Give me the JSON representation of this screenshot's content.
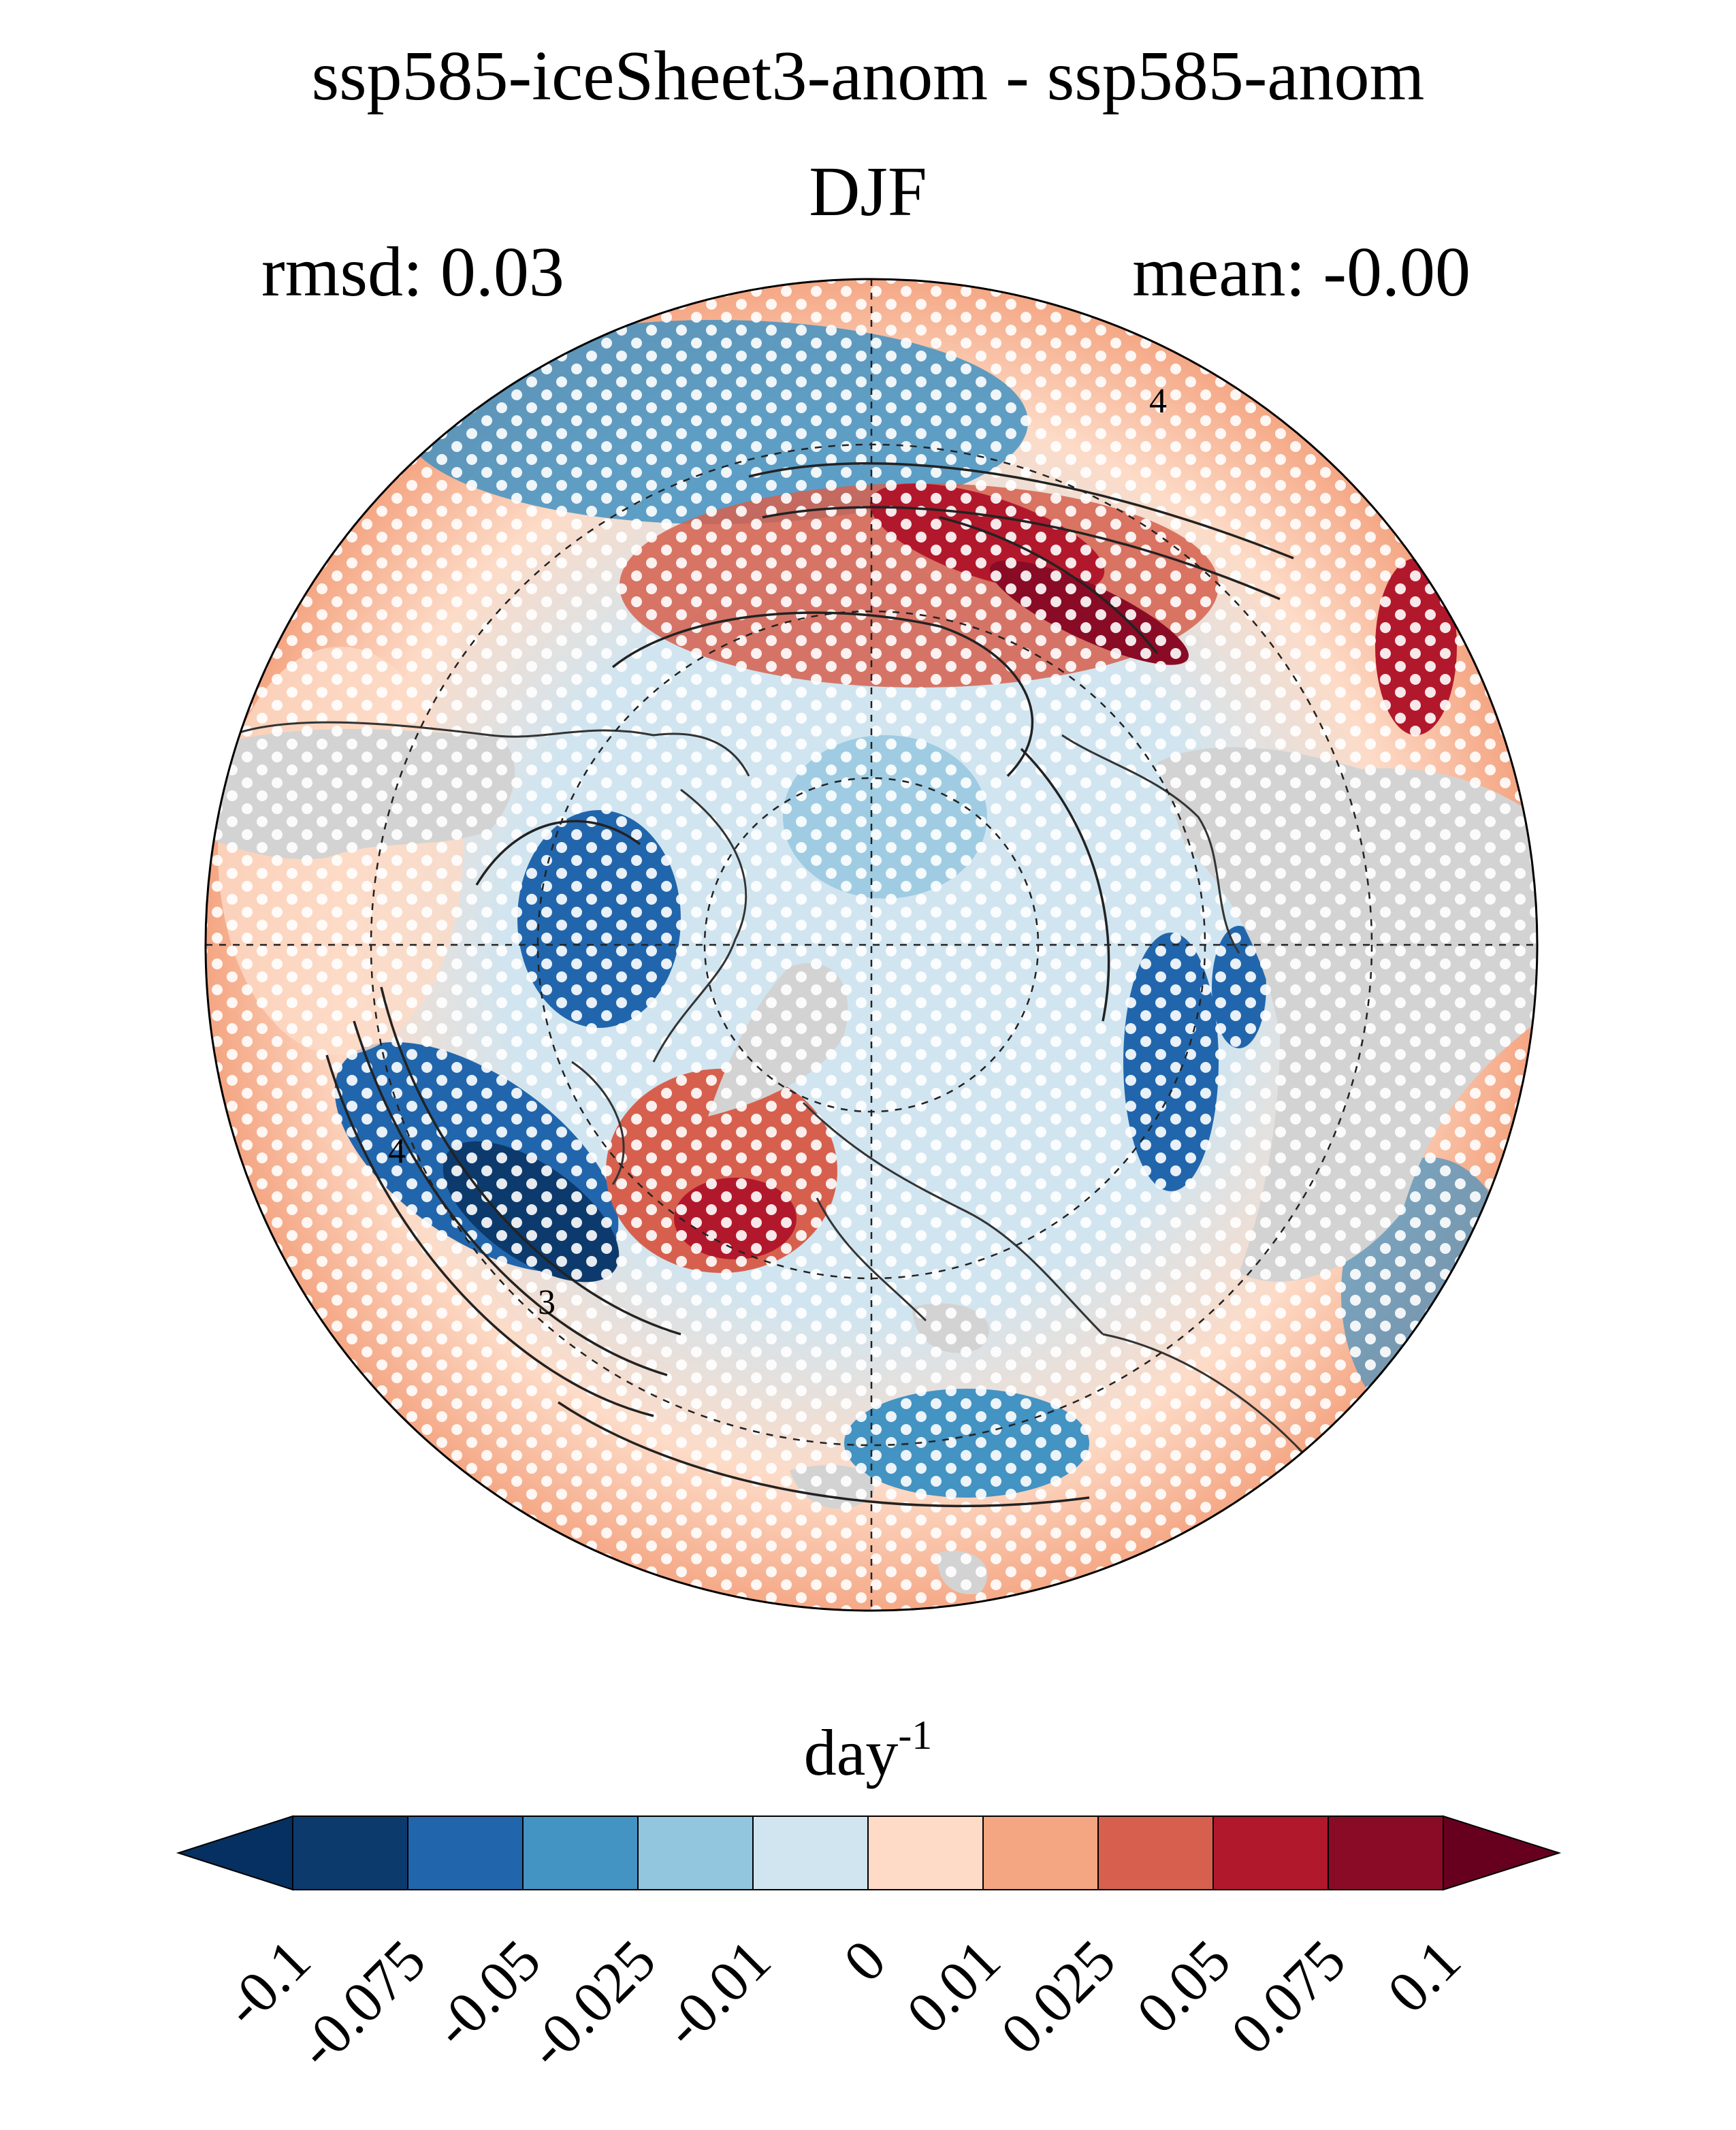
{
  "title": {
    "line1": "ssp585-iceSheet3-anom - ssp585-anom",
    "line2": "DJF"
  },
  "stats": {
    "rmsd": "rmsd: 0.03",
    "mean": "mean: -0.00"
  },
  "map": {
    "projection": "north-polar-stereographic",
    "contour_labels": [
      "4",
      "4",
      "3"
    ],
    "stippling": "white dots",
    "land_mask_color": "#d3d3d3"
  },
  "colorbar": {
    "unit_base": "day",
    "unit_exp": "-1",
    "ticks": [
      "-0.1",
      "-0.075",
      "-0.05",
      "-0.025",
      "-0.01",
      "0",
      "0.01",
      "0.025",
      "0.05",
      "0.075",
      "0.1"
    ],
    "colors": [
      "#053061",
      "#0c3a6d",
      "#2166ac",
      "#4393c3",
      "#92c5de",
      "#d1e5f0",
      "#fddbc7",
      "#f4a582",
      "#d6604d",
      "#b2182b",
      "#8a0b25",
      "#67001f"
    ],
    "extend": "both"
  }
}
